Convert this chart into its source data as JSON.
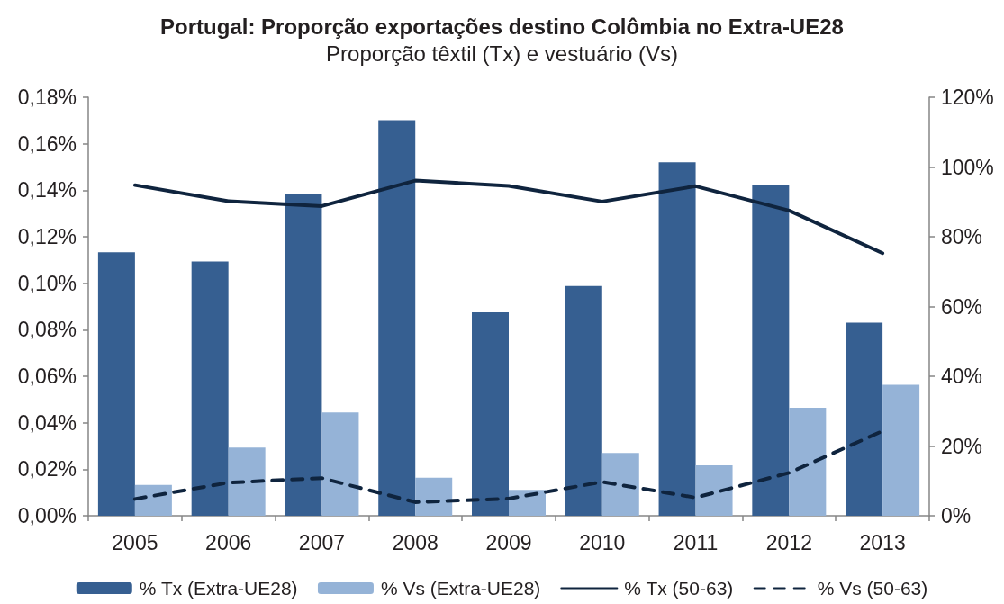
{
  "chart_data": {
    "type": "bar",
    "title": "Portugal: Proporção exportações destino Colômbia no Extra-UE28",
    "subtitle": "Proporção têxtil (Tx) e vestuário (Vs)",
    "categories": [
      "2005",
      "2006",
      "2007",
      "2008",
      "2009",
      "2010",
      "2011",
      "2012",
      "2013"
    ],
    "series": [
      {
        "name": "% Tx (Extra-UE28)",
        "color": "#365f91",
        "values": [
          0.1133,
          0.1094,
          0.1382,
          0.1701,
          0.0875,
          0.0988,
          0.152,
          0.1423,
          0.083
        ]
      },
      {
        "name": "% Vs (Extra-UE28)",
        "color": "#95b3d7",
        "values": [
          0.0133,
          0.0293,
          0.0444,
          0.0164,
          0.0111,
          0.027,
          0.0217,
          0.0465,
          0.0563
        ]
      },
      {
        "name": "% Tx (50-63)",
        "type": "line",
        "axis": "y2",
        "line_style": "solid",
        "color": "#0f243e",
        "values": [
          94.8,
          90.2,
          88.8,
          96.1,
          94.6,
          90.1,
          94.5,
          87.5,
          75.3
        ]
      },
      {
        "name": "% Vs (50-63)",
        "type": "line",
        "axis": "y2",
        "line_style": "dashed",
        "color": "#0f243e",
        "values": [
          4.8,
          9.5,
          10.8,
          3.9,
          4.9,
          9.7,
          5.2,
          12.3,
          24.3
        ]
      }
    ],
    "ylim": [
      0,
      0.18
    ],
    "yticks": [
      {
        "value": 0,
        "label": "0,00%"
      },
      {
        "value": 0.02,
        "label": "0,02%"
      },
      {
        "value": 0.04,
        "label": "0,04%"
      },
      {
        "value": 0.06,
        "label": "0,06%"
      },
      {
        "value": 0.08,
        "label": "0,08%"
      },
      {
        "value": 0.1,
        "label": "0,10%"
      },
      {
        "value": 0.12,
        "label": "0,12%"
      },
      {
        "value": 0.14,
        "label": "0,14%"
      },
      {
        "value": 0.16,
        "label": "0,16%"
      },
      {
        "value": 0.18,
        "label": "0,18%"
      }
    ],
    "y2lim": [
      0,
      120
    ],
    "y2ticks": [
      {
        "value": 0,
        "label": "0%"
      },
      {
        "value": 20,
        "label": "20%"
      },
      {
        "value": 40,
        "label": "40%"
      },
      {
        "value": 60,
        "label": "60%"
      },
      {
        "value": 80,
        "label": "80%"
      },
      {
        "value": 100,
        "label": "100%"
      },
      {
        "value": 120,
        "label": "120%"
      }
    ],
    "grid": false,
    "legend": "bottom",
    "marker": "none"
  }
}
